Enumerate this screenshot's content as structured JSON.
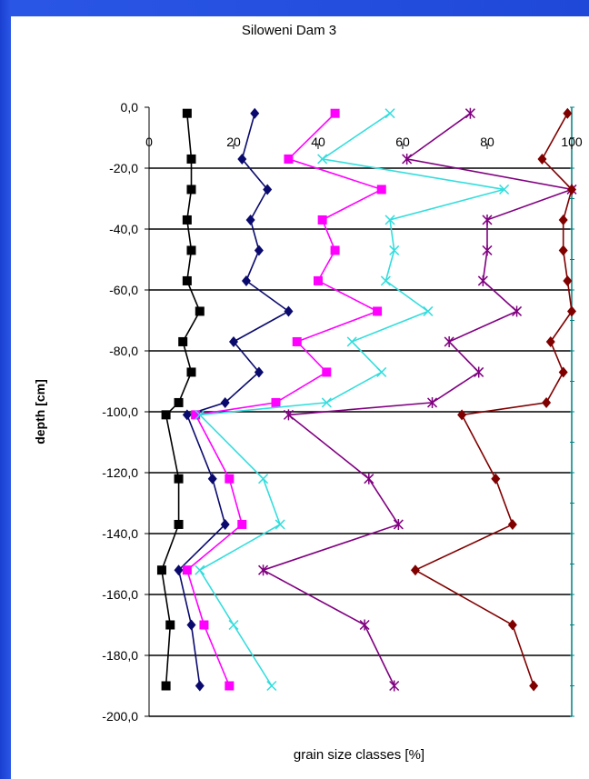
{
  "chart_data": {
    "type": "line",
    "title": "Siloweni Dam 3",
    "xlabel": "grain size classes [%]",
    "ylabel": "depth [cm]",
    "xlim": [
      0,
      100
    ],
    "ylim": [
      -200,
      0
    ],
    "x_ticks": [
      "0",
      "20",
      "40",
      "60",
      "80",
      "100"
    ],
    "y_ticks": [
      "0,0",
      "-20,0",
      "-40,0",
      "-60,0",
      "-80,0",
      "-100,0",
      "-120,0",
      "-140,0",
      "-160,0",
      "-180,0",
      "-200,0"
    ],
    "grid": "horizontal",
    "legend": "none",
    "series": [
      {
        "color": "#000000",
        "marker": "square",
        "points": [
          [
            9,
            -2
          ],
          [
            10,
            -17
          ],
          [
            10,
            -27
          ],
          [
            9,
            -37
          ],
          [
            10,
            -47
          ],
          [
            9,
            -57
          ],
          [
            12,
            -67
          ],
          [
            8,
            -77
          ],
          [
            10,
            -87
          ],
          [
            7,
            -97
          ],
          [
            4,
            -101
          ],
          [
            7,
            -122
          ],
          [
            7,
            -137
          ],
          [
            3,
            -152
          ],
          [
            5,
            -170
          ],
          [
            4,
            -190
          ]
        ]
      },
      {
        "color": "#0a0a6e",
        "marker": "diamond",
        "points": [
          [
            25,
            -2
          ],
          [
            22,
            -17
          ],
          [
            28,
            -27
          ],
          [
            24,
            -37
          ],
          [
            26,
            -47
          ],
          [
            23,
            -57
          ],
          [
            33,
            -67
          ],
          [
            20,
            -77
          ],
          [
            26,
            -87
          ],
          [
            18,
            -97
          ],
          [
            9,
            -101
          ],
          [
            15,
            -122
          ],
          [
            18,
            -137
          ],
          [
            7,
            -152
          ],
          [
            10,
            -170
          ],
          [
            12,
            -190
          ]
        ]
      },
      {
        "color": "#ff00ff",
        "marker": "square",
        "points": [
          [
            44,
            -2
          ],
          [
            33,
            -17
          ],
          [
            55,
            -27
          ],
          [
            41,
            -37
          ],
          [
            44,
            -47
          ],
          [
            40,
            -57
          ],
          [
            54,
            -67
          ],
          [
            35,
            -77
          ],
          [
            42,
            -87
          ],
          [
            30,
            -97
          ],
          [
            11,
            -101
          ],
          [
            19,
            -122
          ],
          [
            22,
            -137
          ],
          [
            9,
            -152
          ],
          [
            13,
            -170
          ],
          [
            19,
            -190
          ]
        ]
      },
      {
        "color": "#33dddd",
        "marker": "x",
        "points": [
          [
            57,
            -2
          ],
          [
            41,
            -17
          ],
          [
            84,
            -27
          ],
          [
            57,
            -37
          ],
          [
            58,
            -47
          ],
          [
            56,
            -57
          ],
          [
            66,
            -67
          ],
          [
            48,
            -77
          ],
          [
            55,
            -87
          ],
          [
            42,
            -97
          ],
          [
            12,
            -101
          ],
          [
            27,
            -122
          ],
          [
            31,
            -137
          ],
          [
            12,
            -152
          ],
          [
            20,
            -170
          ],
          [
            29,
            -190
          ]
        ]
      },
      {
        "color": "#800080",
        "marker": "asterisk",
        "points": [
          [
            76,
            -2
          ],
          [
            61,
            -17
          ],
          [
            100,
            -27
          ],
          [
            80,
            -37
          ],
          [
            80,
            -47
          ],
          [
            79,
            -57
          ],
          [
            87,
            -67
          ],
          [
            71,
            -77
          ],
          [
            78,
            -87
          ],
          [
            67,
            -97
          ],
          [
            33,
            -101
          ],
          [
            52,
            -122
          ],
          [
            59,
            -137
          ],
          [
            27,
            -152
          ],
          [
            51,
            -170
          ],
          [
            58,
            -190
          ]
        ]
      },
      {
        "color": "#800000",
        "marker": "diamond",
        "points": [
          [
            99,
            -2
          ],
          [
            93,
            -17
          ],
          [
            100,
            -27
          ],
          [
            98,
            -37
          ],
          [
            98,
            -47
          ],
          [
            99,
            -57
          ],
          [
            100,
            -67
          ],
          [
            95,
            -77
          ],
          [
            98,
            -87
          ],
          [
            94,
            -97
          ],
          [
            74,
            -101
          ],
          [
            82,
            -122
          ],
          [
            86,
            -137
          ],
          [
            63,
            -152
          ],
          [
            86,
            -170
          ],
          [
            91,
            -190
          ]
        ]
      }
    ]
  }
}
